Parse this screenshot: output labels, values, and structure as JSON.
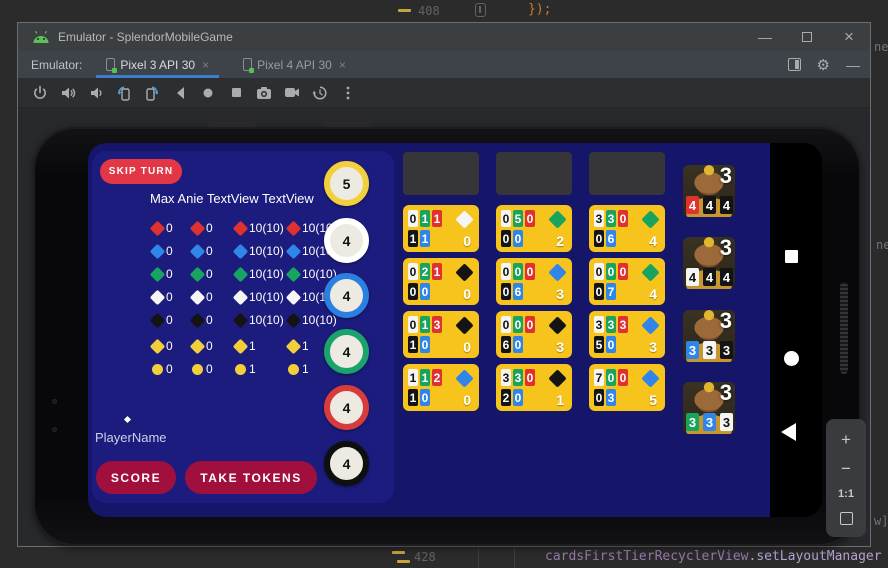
{
  "colors": {
    "red": "#e03131",
    "blue": "#2f86e8",
    "green": "#18a35f",
    "white": "#f5f5f5",
    "black": "#141414",
    "yellow": "#f1ce3a"
  },
  "ide": {
    "top_line": {
      "number": "408",
      "code": "});"
    },
    "bottom_line": {
      "number": "428",
      "object": "cardsFirstTierRecyclerView",
      "method": ".setLayoutManager"
    },
    "edge_fragments": {
      "top": "ne",
      "middle": "ne",
      "bottom": "w]"
    }
  },
  "window": {
    "title": "Emulator - SplendorMobileGame",
    "controls": {
      "minimize": "—",
      "close": "×"
    }
  },
  "tabs": {
    "label": "Emulator:",
    "items": [
      {
        "label": "Pixel 3 API 30",
        "close": "×",
        "active": true
      },
      {
        "label": "Pixel 4 API 30",
        "close": "×",
        "active": false
      }
    ]
  },
  "emulator_toolbar": {
    "icons": [
      "power",
      "volume-up",
      "volume-down",
      "rotate-left",
      "rotate-right",
      "back",
      "home",
      "overview",
      "camera",
      "video",
      "snapshot",
      "more"
    ]
  },
  "zoom_panel": {
    "zoom_in": "+",
    "zoom_out": "−",
    "ratio": "1:1"
  },
  "game": {
    "skip_turn_label": "SKIP TURN",
    "players_header": "Max Anie TextView TextView",
    "stat_rows": [
      {
        "color": "red",
        "shape": "diamond",
        "values": [
          "0",
          "0",
          "10(10)",
          "10(10)"
        ]
      },
      {
        "color": "blue",
        "shape": "diamond",
        "values": [
          "0",
          "0",
          "10(10)",
          "10(10)"
        ]
      },
      {
        "color": "green",
        "shape": "diamond",
        "values": [
          "0",
          "0",
          "10(10)",
          "10(10)"
        ]
      },
      {
        "color": "white",
        "shape": "diamond",
        "values": [
          "0",
          "0",
          "10(10)",
          "10(10)"
        ]
      },
      {
        "color": "black",
        "shape": "diamond",
        "values": [
          "0",
          "0",
          "10(10)",
          "10(10)"
        ]
      },
      {
        "color": "yellow",
        "shape": "diamond",
        "values": [
          "0",
          "0",
          "1",
          "1"
        ]
      },
      {
        "color": "yellow",
        "shape": "circle",
        "values": [
          "0",
          "0",
          "1",
          "1"
        ]
      }
    ],
    "player_name": "PlayerName",
    "score_label": "SCORE",
    "take_tokens_label": "TAKE TOKENS",
    "tokens": [
      {
        "count": "5",
        "ring": "#f2cf3d"
      },
      {
        "count": "4",
        "ring": "#ffffff"
      },
      {
        "count": "4",
        "ring": "#2b7fe0"
      },
      {
        "count": "4",
        "ring": "#1aa36b"
      },
      {
        "count": "4",
        "ring": "#d83b3b"
      },
      {
        "count": "4",
        "ring": "#0f0f0f"
      }
    ],
    "card_rows": [
      [
        {
          "cost_top": [
            [
              "white",
              "0"
            ],
            [
              "green",
              "1"
            ],
            [
              "red",
              "1"
            ]
          ],
          "cost_bottom": [
            [
              "black",
              "1"
            ],
            [
              "blue",
              "1"
            ]
          ],
          "gem": "white",
          "points": "0"
        },
        {
          "cost_top": [
            [
              "white",
              "0"
            ],
            [
              "green",
              "5"
            ],
            [
              "red",
              "0"
            ]
          ],
          "cost_bottom": [
            [
              "black",
              "0"
            ],
            [
              "blue",
              "0"
            ]
          ],
          "gem": "green",
          "points": "2"
        },
        {
          "cost_top": [
            [
              "white",
              "3"
            ],
            [
              "green",
              "3"
            ],
            [
              "red",
              "0"
            ]
          ],
          "cost_bottom": [
            [
              "black",
              "0"
            ],
            [
              "blue",
              "6"
            ]
          ],
          "gem": "green",
          "points": "4"
        }
      ],
      [
        {
          "cost_top": [
            [
              "white",
              "0"
            ],
            [
              "green",
              "2"
            ],
            [
              "red",
              "1"
            ]
          ],
          "cost_bottom": [
            [
              "black",
              "0"
            ],
            [
              "blue",
              "0"
            ]
          ],
          "gem": "black",
          "points": "0"
        },
        {
          "cost_top": [
            [
              "white",
              "0"
            ],
            [
              "green",
              "0"
            ],
            [
              "red",
              "0"
            ]
          ],
          "cost_bottom": [
            [
              "black",
              "0"
            ],
            [
              "blue",
              "6"
            ]
          ],
          "gem": "blue",
          "points": "3"
        },
        {
          "cost_top": [
            [
              "white",
              "0"
            ],
            [
              "green",
              "0"
            ],
            [
              "red",
              "0"
            ]
          ],
          "cost_bottom": [
            [
              "black",
              "0"
            ],
            [
              "blue",
              "7"
            ]
          ],
          "gem": "green",
          "points": "4"
        }
      ],
      [
        {
          "cost_top": [
            [
              "white",
              "0"
            ],
            [
              "green",
              "1"
            ],
            [
              "red",
              "3"
            ]
          ],
          "cost_bottom": [
            [
              "black",
              "1"
            ],
            [
              "blue",
              "0"
            ]
          ],
          "gem": "black",
          "points": "0"
        },
        {
          "cost_top": [
            [
              "white",
              "0"
            ],
            [
              "green",
              "0"
            ],
            [
              "red",
              "0"
            ]
          ],
          "cost_bottom": [
            [
              "black",
              "6"
            ],
            [
              "blue",
              "0"
            ]
          ],
          "gem": "black",
          "points": "3"
        },
        {
          "cost_top": [
            [
              "white",
              "3"
            ],
            [
              "green",
              "3"
            ],
            [
              "red",
              "3"
            ]
          ],
          "cost_bottom": [
            [
              "black",
              "5"
            ],
            [
              "blue",
              "0"
            ]
          ],
          "gem": "blue",
          "points": "3"
        }
      ],
      [
        {
          "cost_top": [
            [
              "white",
              "1"
            ],
            [
              "green",
              "1"
            ],
            [
              "red",
              "2"
            ]
          ],
          "cost_bottom": [
            [
              "black",
              "1"
            ],
            [
              "blue",
              "0"
            ]
          ],
          "gem": "blue",
          "points": "0"
        },
        {
          "cost_top": [
            [
              "white",
              "3"
            ],
            [
              "green",
              "3"
            ],
            [
              "red",
              "0"
            ]
          ],
          "cost_bottom": [
            [
              "black",
              "2"
            ],
            [
              "blue",
              "0"
            ]
          ],
          "gem": "black",
          "points": "1"
        },
        {
          "cost_top": [
            [
              "white",
              "7"
            ],
            [
              "green",
              "0"
            ],
            [
              "red",
              "0"
            ]
          ],
          "cost_bottom": [
            [
              "black",
              "0"
            ],
            [
              "blue",
              "3"
            ]
          ],
          "gem": "blue",
          "points": "5"
        }
      ]
    ],
    "nobles": [
      {
        "points": "3",
        "cost": [
          [
            "red",
            "4"
          ],
          [
            "black",
            "4"
          ],
          [
            "black",
            "4"
          ]
        ]
      },
      {
        "points": "3",
        "cost": [
          [
            "white",
            "4"
          ],
          [
            "black",
            "4"
          ],
          [
            "black",
            "4"
          ]
        ]
      },
      {
        "points": "3",
        "cost": [
          [
            "blue",
            "3"
          ],
          [
            "white",
            "3"
          ],
          [
            "black",
            "3"
          ]
        ]
      },
      {
        "points": "3",
        "cost": [
          [
            "green",
            "3"
          ],
          [
            "blue",
            "3"
          ],
          [
            "white",
            "3"
          ]
        ]
      }
    ]
  }
}
